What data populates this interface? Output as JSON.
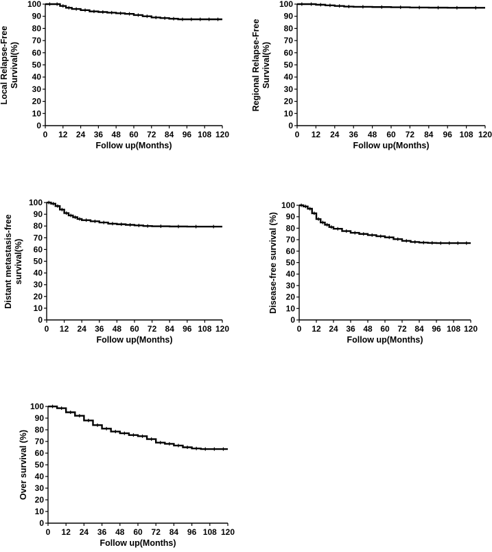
{
  "chart_data": [
    {
      "type": "line",
      "id": "local",
      "ylabel": [
        "Local Relapse-Free",
        "Survival(%)"
      ],
      "xlabel": "Follow up(Months)",
      "xlim": [
        0,
        120
      ],
      "ylim": [
        0,
        100
      ],
      "xticks": [
        0,
        12,
        24,
        36,
        48,
        60,
        72,
        84,
        96,
        108,
        120
      ],
      "yticks": [
        0,
        10,
        20,
        30,
        40,
        50,
        60,
        70,
        80,
        90,
        100
      ],
      "grid": false,
      "series": [
        {
          "x": [
            0,
            6,
            10,
            14,
            18,
            24,
            30,
            36,
            42,
            48,
            54,
            60,
            66,
            72,
            78,
            84,
            90,
            96,
            102,
            108,
            114,
            120
          ],
          "y": [
            100,
            100,
            98.5,
            97,
            96,
            95,
            94,
            93.5,
            93,
            92.5,
            92,
            91,
            90,
            89,
            88.5,
            88,
            87.5,
            87.5,
            87.5,
            87.5,
            87.5,
            87.5
          ]
        }
      ]
    },
    {
      "type": "line",
      "id": "regional",
      "ylabel": [
        "Regional Relapse-Free",
        "Survival(%)"
      ],
      "xlabel": "Follow up(Months)",
      "xlim": [
        0,
        120
      ],
      "ylim": [
        0,
        100
      ],
      "xticks": [
        0,
        12,
        24,
        36,
        48,
        60,
        72,
        84,
        96,
        108,
        120
      ],
      "yticks": [
        0,
        10,
        20,
        30,
        40,
        50,
        60,
        70,
        80,
        90,
        100
      ],
      "grid": false,
      "series": [
        {
          "x": [
            0,
            6,
            12,
            18,
            24,
            30,
            36,
            48,
            60,
            72,
            84,
            96,
            108,
            120
          ],
          "y": [
            100,
            100,
            99.5,
            99,
            98.5,
            98,
            97.8,
            97.6,
            97.4,
            97.2,
            97.1,
            97,
            97,
            97
          ]
        }
      ]
    },
    {
      "type": "line",
      "id": "distant",
      "ylabel": [
        "Distant metastasis-free",
        "survival(%)"
      ],
      "xlabel": "Follow up(Months)",
      "xlim": [
        0,
        120
      ],
      "ylim": [
        0,
        100
      ],
      "xticks": [
        0,
        12,
        24,
        36,
        48,
        60,
        72,
        84,
        96,
        108,
        120
      ],
      "yticks": [
        0,
        10,
        20,
        30,
        40,
        50,
        60,
        70,
        80,
        90,
        100
      ],
      "grid": false,
      "series": [
        {
          "x": [
            0,
            3,
            6,
            9,
            12,
            15,
            18,
            21,
            24,
            30,
            36,
            42,
            48,
            54,
            60,
            66,
            72,
            84,
            96,
            108,
            120
          ],
          "y": [
            100,
            99,
            97,
            94,
            91,
            89,
            87.5,
            86,
            85,
            84,
            83,
            82,
            81.5,
            81,
            80.5,
            80,
            79.8,
            79.6,
            79.5,
            79.5,
            79.5
          ]
        }
      ]
    },
    {
      "type": "line",
      "id": "disease",
      "ylabel": [
        "Disease-free survival (%)"
      ],
      "xlabel": "Follow up(Months)",
      "xlim": [
        0,
        120
      ],
      "ylim": [
        0,
        100
      ],
      "xticks": [
        0,
        12,
        24,
        36,
        48,
        60,
        72,
        84,
        96,
        108,
        120
      ],
      "yticks": [
        0,
        10,
        20,
        30,
        40,
        50,
        60,
        70,
        80,
        90,
        100
      ],
      "grid": false,
      "series": [
        {
          "x": [
            0,
            3,
            6,
            9,
            12,
            15,
            18,
            21,
            24,
            30,
            36,
            42,
            48,
            54,
            60,
            66,
            72,
            78,
            84,
            90,
            96,
            102,
            108,
            114,
            120
          ],
          "y": [
            100,
            99,
            97,
            93,
            88,
            85,
            83,
            81,
            79.5,
            77.5,
            76,
            75,
            74,
            73,
            72,
            70.5,
            69,
            68,
            67.5,
            67.2,
            67,
            67,
            67,
            67,
            67
          ]
        }
      ]
    },
    {
      "type": "line",
      "id": "overall",
      "ylabel": [
        "Over survival (%)"
      ],
      "xlabel": "Follow up(Months)",
      "xlim": [
        0,
        120
      ],
      "ylim": [
        0,
        100
      ],
      "xticks": [
        0,
        12,
        24,
        36,
        48,
        60,
        72,
        84,
        96,
        108,
        120
      ],
      "yticks": [
        0,
        10,
        20,
        30,
        40,
        50,
        60,
        70,
        80,
        90,
        100
      ],
      "grid": false,
      "series": [
        {
          "x": [
            0,
            6,
            12,
            18,
            24,
            30,
            36,
            42,
            48,
            54,
            60,
            66,
            72,
            78,
            84,
            90,
            96,
            102,
            108,
            114,
            120
          ],
          "y": [
            100,
            98.5,
            95,
            92,
            88,
            84,
            81,
            78.5,
            77,
            75.5,
            74.5,
            72,
            69,
            68,
            66.5,
            65,
            64,
            63.5,
            63.5,
            63.5,
            63.5
          ]
        }
      ]
    }
  ]
}
